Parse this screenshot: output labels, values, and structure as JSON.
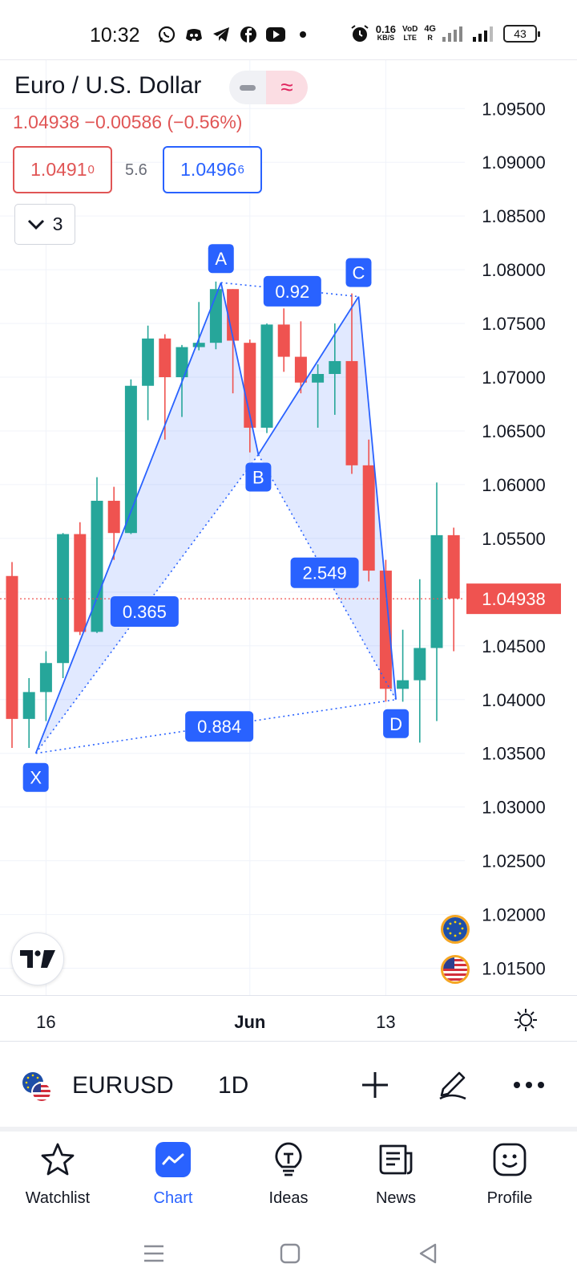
{
  "status": {
    "time": "10:32",
    "net_speed_value": "0.16",
    "net_speed_unit": "KB/S",
    "volte_line1": "VoD",
    "volte_line2": "LTE",
    "network_type": "4G",
    "network_sub": "R",
    "battery": "43",
    "app_icons": [
      "whatsapp-icon",
      "discord-icon",
      "telegram-icon",
      "facebook-icon",
      "youtube-icon",
      "dot-icon"
    ]
  },
  "header": {
    "title": "Euro / U.S. Dollar",
    "price_line": "1.04938  −0.00586 (−0.56%)",
    "bid_main": "1.0491",
    "bid_sup": "0",
    "spread": "5.6",
    "ask_main": "1.0496",
    "ask_sup": "6",
    "indicator_count": "3"
  },
  "chart_data": {
    "type": "candlestick",
    "price_axis_ticks": [
      "1.09500",
      "1.09000",
      "1.08500",
      "1.08000",
      "1.07500",
      "1.07000",
      "1.06500",
      "1.06000",
      "1.05500",
      "1.05000",
      "1.04500",
      "1.04000",
      "1.03500",
      "1.03000",
      "1.02500",
      "1.02000",
      "1.01500"
    ],
    "y_range": [
      1.0125,
      1.0995
    ],
    "last_price": "1.04938",
    "time_labels": [
      {
        "label": "16",
        "index": 2
      },
      {
        "label": "Jun",
        "index": 14
      },
      {
        "label": "13",
        "index": 22
      }
    ],
    "candles": [
      {
        "o": 1.0515,
        "h": 1.0528,
        "l": 1.0355,
        "c": 1.0382
      },
      {
        "o": 1.0382,
        "h": 1.042,
        "l": 1.0355,
        "c": 1.0407
      },
      {
        "o": 1.0407,
        "h": 1.0445,
        "l": 1.038,
        "c": 1.0434
      },
      {
        "o": 1.0434,
        "h": 1.0555,
        "l": 1.042,
        "c": 1.0554
      },
      {
        "o": 1.0554,
        "h": 1.0565,
        "l": 1.046,
        "c": 1.0463
      },
      {
        "o": 1.0463,
        "h": 1.0607,
        "l": 1.0462,
        "c": 1.0585
      },
      {
        "o": 1.0585,
        "h": 1.0598,
        "l": 1.053,
        "c": 1.0555
      },
      {
        "o": 1.0555,
        "h": 1.0698,
        "l": 1.0554,
        "c": 1.0692
      },
      {
        "o": 1.0692,
        "h": 1.0748,
        "l": 1.066,
        "c": 1.0736
      },
      {
        "o": 1.0736,
        "h": 1.074,
        "l": 1.0642,
        "c": 1.07
      },
      {
        "o": 1.07,
        "h": 1.073,
        "l": 1.0663,
        "c": 1.0728
      },
      {
        "o": 1.0728,
        "h": 1.077,
        "l": 1.0725,
        "c": 1.0732
      },
      {
        "o": 1.0732,
        "h": 1.0789,
        "l": 1.0726,
        "c": 1.0782
      },
      {
        "o": 1.0782,
        "h": 1.0782,
        "l": 1.0685,
        "c": 1.0734
      },
      {
        "o": 1.0732,
        "h": 1.0735,
        "l": 1.063,
        "c": 1.0653
      },
      {
        "o": 1.0653,
        "h": 1.075,
        "l": 1.0648,
        "c": 1.0749
      },
      {
        "o": 1.0749,
        "h": 1.0764,
        "l": 1.0705,
        "c": 1.0719
      },
      {
        "o": 1.0719,
        "h": 1.0752,
        "l": 1.0685,
        "c": 1.0695
      },
      {
        "o": 1.0695,
        "h": 1.0712,
        "l": 1.0653,
        "c": 1.0703
      },
      {
        "o": 1.0703,
        "h": 1.075,
        "l": 1.0665,
        "c": 1.0715
      },
      {
        "o": 1.0715,
        "h": 1.0778,
        "l": 1.061,
        "c": 1.0618
      },
      {
        "o": 1.0618,
        "h": 1.0642,
        "l": 1.051,
        "c": 1.052
      },
      {
        "o": 1.052,
        "h": 1.053,
        "l": 1.0398,
        "c": 1.041
      },
      {
        "o": 1.041,
        "h": 1.0465,
        "l": 1.0398,
        "c": 1.0418
      },
      {
        "o": 1.0418,
        "h": 1.0512,
        "l": 1.036,
        "c": 1.0448
      },
      {
        "o": 1.0448,
        "h": 1.0602,
        "l": 1.038,
        "c": 1.0553
      },
      {
        "o": 1.0553,
        "h": 1.056,
        "l": 1.0445,
        "c": 1.0494
      }
    ],
    "xabcd_pattern": {
      "points": [
        {
          "label": "X",
          "index": 1.4,
          "price": 1.035
        },
        {
          "label": "A",
          "index": 12.3,
          "price": 1.0788
        },
        {
          "label": "B",
          "index": 14.5,
          "price": 1.0628
        },
        {
          "label": "C",
          "index": 20.4,
          "price": 1.0775
        },
        {
          "label": "D",
          "index": 22.6,
          "price": 1.04
        }
      ],
      "ratios": [
        {
          "label": "0.365",
          "from": "X",
          "to": "B",
          "mid_index": 7.8,
          "mid_price": 1.0482
        },
        {
          "label": "0.92",
          "from": "A",
          "to": "C",
          "mid_index": 16.5,
          "mid_price": 1.078
        },
        {
          "label": "2.549",
          "from": "B",
          "to": "D",
          "mid_index": 18.4,
          "mid_price": 1.0518
        },
        {
          "label": "0.884",
          "from": "X",
          "to": "D",
          "mid_index": 12.2,
          "mid_price": 1.0375
        }
      ]
    },
    "colors": {
      "up": "#26a69a",
      "down": "#ef5350",
      "pattern": "#2962ff",
      "pattern_fill": "rgba(41,98,255,0.14)",
      "last_price": "#ef5350",
      "grid": "#f0f3fa"
    }
  },
  "toolbar": {
    "ticker": "EURUSD",
    "interval": "1D"
  },
  "nav": {
    "items": [
      {
        "label": "Watchlist",
        "icon": "star-icon"
      },
      {
        "label": "Chart",
        "icon": "chart-icon"
      },
      {
        "label": "Ideas",
        "icon": "lightbulb-icon"
      },
      {
        "label": "News",
        "icon": "newspaper-icon"
      },
      {
        "label": "Profile",
        "icon": "smiley-icon"
      }
    ],
    "active": "Chart"
  }
}
